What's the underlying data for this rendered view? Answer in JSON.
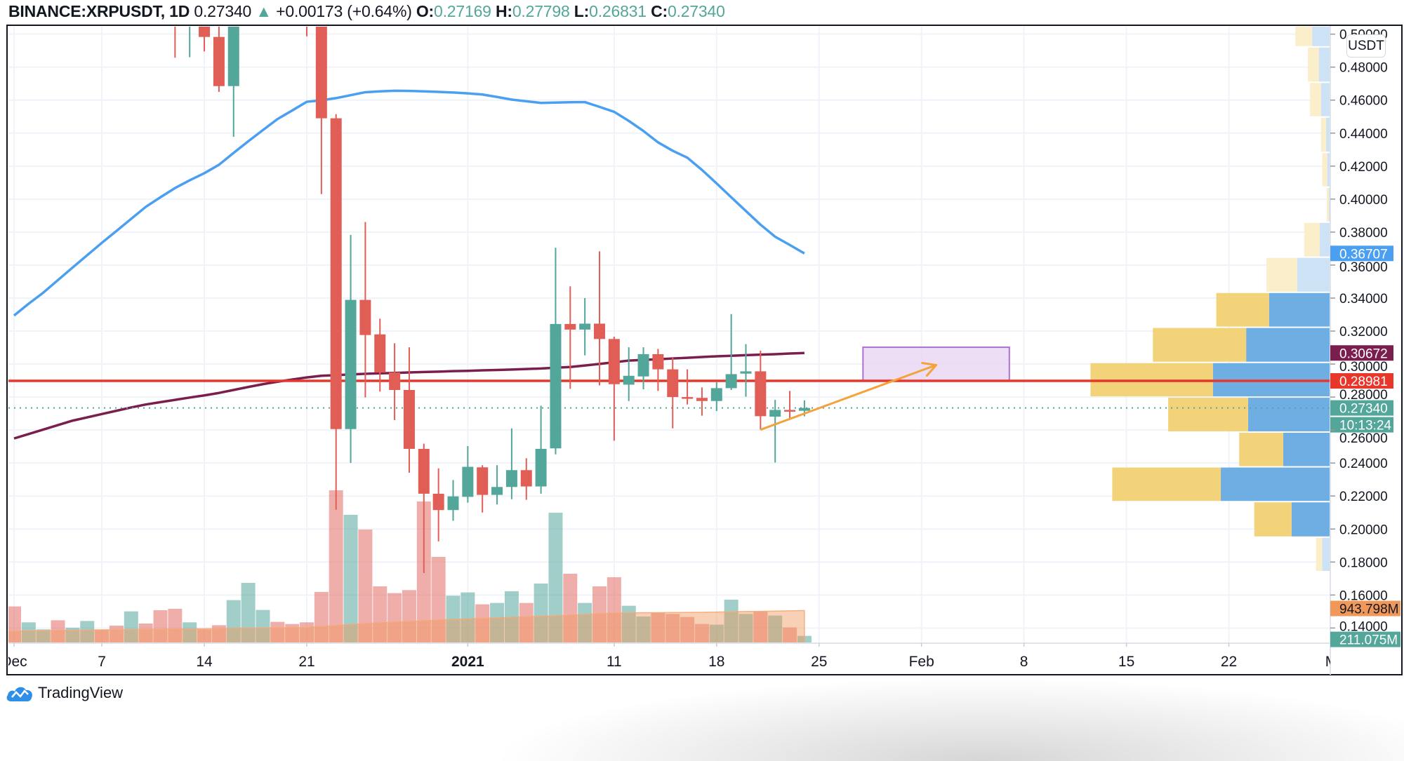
{
  "header": {
    "symbol": "BINANCE:XRPUSDT, 1D",
    "last": "0.27340",
    "change_arrow": "▲",
    "change": "+0.00173 (+0.64%)",
    "o_label": "O:",
    "o_value": "0.27169",
    "h_label": "H:",
    "h_value": "0.27798",
    "l_label": "L:",
    "l_value": "0.26831",
    "c_label": "C:",
    "c_value": "0.27340"
  },
  "currency_button": "USDT",
  "logo": {
    "text": "TradingView",
    "icon": "tradingview-cloud-icon"
  },
  "chart_data": {
    "type": "candlestick",
    "grid": true,
    "colors": {
      "up": "#53a69a",
      "down": "#e15e56",
      "ma_blue": "#4a9ff0",
      "ma_purple": "#7a1f4d",
      "level_line": "#e8372a",
      "arrow": "#f4a23a",
      "volume_ma": "#f0a070"
    },
    "price_range": [
      0.1308,
      0.5045
    ],
    "price_ticks": [
      {
        "value": 0.5,
        "label": "0.50000"
      },
      {
        "value": 0.48,
        "label": "0.48000"
      },
      {
        "value": 0.46,
        "label": "0.46000"
      },
      {
        "value": 0.44,
        "label": "0.44000"
      },
      {
        "value": 0.42,
        "label": "0.42000"
      },
      {
        "value": 0.4,
        "label": "0.40000"
      },
      {
        "value": 0.38,
        "label": "0.38000"
      },
      {
        "value": 0.36,
        "label": "0.36000"
      },
      {
        "value": 0.34,
        "label": "0.34000"
      },
      {
        "value": 0.32,
        "label": "0.32000"
      },
      {
        "value": 0.3,
        "label": "0.30000"
      },
      {
        "value": 0.28,
        "label": "0.28000"
      },
      {
        "value": 0.26,
        "label": "0.26000"
      },
      {
        "value": 0.24,
        "label": "0.24000"
      },
      {
        "value": 0.22,
        "label": "0.22000"
      },
      {
        "value": 0.2,
        "label": "0.20000"
      },
      {
        "value": 0.18,
        "label": "0.18000"
      },
      {
        "value": 0.16,
        "label": "0.16000"
      },
      {
        "value": 0.14,
        "label": "0.14000"
      }
    ],
    "time_axis": [
      {
        "date": "2020-12-01",
        "label": "Dec"
      },
      {
        "date": "2020-12-07",
        "label": "7"
      },
      {
        "date": "2020-12-14",
        "label": "14"
      },
      {
        "date": "2020-12-21",
        "label": "21"
      },
      {
        "date": "2021-01-01",
        "label": "2021"
      },
      {
        "date": "2021-01-11",
        "label": "11"
      },
      {
        "date": "2021-01-18",
        "label": "18"
      },
      {
        "date": "2021-01-25",
        "label": "25"
      },
      {
        "date": "2021-02-01",
        "label": "Feb"
      },
      {
        "date": "2021-02-08",
        "label": "8"
      },
      {
        "date": "2021-02-15",
        "label": "15"
      },
      {
        "date": "2021-02-22",
        "label": "22"
      },
      {
        "date": "2021-03-01",
        "label": "M"
      }
    ],
    "candle_columns": [
      "date",
      "open",
      "high",
      "low",
      "close",
      "volume_millions",
      "direction"
    ],
    "candles": [
      [
        "2020-12-01",
        null,
        null,
        null,
        null,
        1063,
        "down"
      ],
      [
        "2020-12-02",
        null,
        null,
        null,
        null,
        603,
        "up"
      ],
      [
        "2020-12-03",
        null,
        null,
        null,
        null,
        399,
        "up"
      ],
      [
        "2020-12-04",
        null,
        null,
        null,
        null,
        663,
        "down"
      ],
      [
        "2020-12-05",
        null,
        null,
        null,
        null,
        447,
        "up"
      ],
      [
        "2020-12-06",
        null,
        null,
        null,
        null,
        643,
        "up"
      ],
      [
        "2020-12-07",
        null,
        null,
        null,
        null,
        399,
        "down"
      ],
      [
        "2020-12-08",
        null,
        null,
        null,
        null,
        508,
        "down"
      ],
      [
        "2020-12-09",
        null,
        null,
        null,
        null,
        921,
        "up"
      ],
      [
        "2020-12-10",
        null,
        null,
        null,
        null,
        569,
        "down"
      ],
      [
        "2020-12-11",
        null,
        null,
        null,
        null,
        955,
        "down"
      ],
      [
        "2020-12-12",
        null,
        null,
        0.4857,
        null,
        995,
        "down"
      ],
      [
        "2020-12-13",
        null,
        null,
        0.486,
        null,
        603,
        "up"
      ],
      [
        "2020-12-14",
        null,
        null,
        0.4895,
        0.4983,
        399,
        "down"
      ],
      [
        "2020-12-15",
        0.4983,
        null,
        0.465,
        0.4685,
        521,
        "down"
      ],
      [
        "2020-12-16",
        0.4685,
        null,
        0.4378,
        null,
        1246,
        "up"
      ],
      [
        "2020-12-17",
        null,
        null,
        null,
        null,
        1746,
        "up"
      ],
      [
        "2020-12-18",
        null,
        null,
        null,
        null,
        961,
        "up"
      ],
      [
        "2020-12-19",
        null,
        null,
        null,
        null,
        616,
        "down"
      ],
      [
        "2020-12-20",
        null,
        null,
        null,
        null,
        555,
        "down"
      ],
      [
        "2020-12-21",
        null,
        null,
        0.4987,
        null,
        603,
        "down"
      ],
      [
        "2020-12-22",
        null,
        null,
        0.403,
        0.449,
        1483,
        "down"
      ],
      [
        "2020-12-23",
        0.449,
        0.4515,
        0.2117,
        0.2606,
        4425,
        "down"
      ],
      [
        "2020-12-24",
        0.2606,
        0.3783,
        0.2401,
        0.3389,
        3715,
        "up"
      ],
      [
        "2020-12-25",
        0.3389,
        0.3861,
        0.2798,
        0.3176,
        3289,
        "down"
      ],
      [
        "2020-12-26",
        0.318,
        0.3275,
        0.2833,
        0.2949,
        1644,
        "down"
      ],
      [
        "2020-12-27",
        0.2949,
        0.3126,
        0.266,
        0.2843,
        1449,
        "down"
      ],
      [
        "2020-12-28",
        0.2843,
        0.3102,
        0.2341,
        0.2486,
        1537,
        "down"
      ],
      [
        "2020-12-29",
        0.2486,
        0.2517,
        0.1733,
        0.2214,
        4100,
        "down"
      ],
      [
        "2020-12-30",
        0.2214,
        0.2368,
        0.1925,
        0.2115,
        2497,
        "down"
      ],
      [
        "2020-12-31",
        0.2115,
        0.2297,
        0.205,
        0.2198,
        1374,
        "up"
      ],
      [
        "2021-01-01",
        0.2195,
        0.2503,
        0.216,
        0.2377,
        1469,
        "up"
      ],
      [
        "2021-01-02",
        0.2374,
        0.2387,
        0.21,
        0.2207,
        1124,
        "down"
      ],
      [
        "2021-01-03",
        0.2207,
        0.2387,
        0.2149,
        0.2255,
        1164,
        "up"
      ],
      [
        "2021-01-04",
        0.2255,
        0.261,
        0.2181,
        0.2357,
        1503,
        "up"
      ],
      [
        "2021-01-05",
        0.2357,
        0.2429,
        0.2177,
        0.2258,
        1164,
        "down"
      ],
      [
        "2021-01-06",
        0.2258,
        0.2748,
        0.2214,
        0.2486,
        1726,
        "up"
      ],
      [
        "2021-01-07",
        0.2489,
        0.3705,
        0.2453,
        0.3243,
        3776,
        "up"
      ],
      [
        "2021-01-08",
        0.3243,
        0.3471,
        0.285,
        0.3209,
        2010,
        "down"
      ],
      [
        "2021-01-09",
        0.3209,
        0.34,
        0.3053,
        0.3245,
        1164,
        "up"
      ],
      [
        "2021-01-10",
        0.3245,
        0.3683,
        0.2871,
        0.3152,
        1644,
        "down"
      ],
      [
        "2021-01-11",
        0.3152,
        0.3166,
        0.2535,
        0.2878,
        1908,
        "down"
      ],
      [
        "2021-01-12",
        0.2875,
        0.3102,
        0.2776,
        0.2929,
        1083,
        "up"
      ],
      [
        "2021-01-13",
        0.2925,
        0.3102,
        0.2847,
        0.306,
        772,
        "up"
      ],
      [
        "2021-01-14",
        0.306,
        0.3092,
        0.2837,
        0.2968,
        887,
        "down"
      ],
      [
        "2021-01-15",
        0.2968,
        0.3038,
        0.261,
        0.28,
        846,
        "down"
      ],
      [
        "2021-01-16",
        0.28,
        0.2968,
        0.2755,
        0.2795,
        758,
        "down"
      ],
      [
        "2021-01-17",
        0.2795,
        0.2858,
        0.2687,
        0.2776,
        555,
        "down"
      ],
      [
        "2021-01-18",
        0.2776,
        0.289,
        0.2715,
        0.2854,
        535,
        "up"
      ],
      [
        "2021-01-19",
        0.2854,
        0.3303,
        0.2843,
        0.2939,
        1259,
        "up"
      ],
      [
        "2021-01-20",
        0.2942,
        0.3121,
        0.2802,
        0.2956,
        846,
        "up"
      ],
      [
        "2021-01-21",
        0.2956,
        0.3081,
        0.2602,
        0.2684,
        914,
        "down"
      ],
      [
        "2021-01-22",
        0.2681,
        0.2783,
        0.2403,
        0.2722,
        799,
        "up"
      ],
      [
        "2021-01-23",
        0.2722,
        0.2837,
        0.2667,
        0.2718,
        454,
        "down"
      ],
      [
        "2021-01-24",
        0.27169,
        0.27798,
        0.26831,
        0.2734,
        211.075,
        "up"
      ]
    ],
    "ma_blue": [
      0.3294,
      0.3366,
      0.3433,
      0.3509,
      0.3585,
      0.366,
      0.3735,
      0.3807,
      0.388,
      0.3953,
      0.4011,
      0.4067,
      0.4114,
      0.4157,
      0.4208,
      0.428,
      0.435,
      0.4418,
      0.4485,
      0.4537,
      0.459,
      0.4599,
      0.4612,
      0.463,
      0.4648,
      0.4653,
      0.4657,
      0.4656,
      0.4653,
      0.465,
      0.4646,
      0.4641,
      0.4634,
      0.4619,
      0.4603,
      0.4593,
      0.4583,
      0.4585,
      0.4587,
      0.4588,
      0.4559,
      0.4529,
      0.4474,
      0.4413,
      0.4344,
      0.4293,
      0.4251,
      0.4177,
      0.4095,
      0.4011,
      0.3928,
      0.3845,
      0.3772,
      0.3722,
      0.36707
    ],
    "ma_purple": [
      0.2549,
      0.2576,
      0.2603,
      0.263,
      0.2657,
      0.2677,
      0.2697,
      0.2717,
      0.2737,
      0.2755,
      0.2769,
      0.2783,
      0.2797,
      0.281,
      0.2825,
      0.2843,
      0.2861,
      0.2878,
      0.2893,
      0.2906,
      0.2919,
      0.2929,
      0.2933,
      0.2937,
      0.2941,
      0.2944,
      0.2946,
      0.2949,
      0.2952,
      0.2954,
      0.2957,
      0.2959,
      0.2962,
      0.2964,
      0.2967,
      0.297,
      0.2973,
      0.2978,
      0.2982,
      0.2991,
      0.3001,
      0.3011,
      0.3021,
      0.3025,
      0.3029,
      0.3034,
      0.3038,
      0.3043,
      0.3047,
      0.305,
      0.3054,
      0.3057,
      0.306,
      0.3064,
      0.30672
    ],
    "volume_ma": [
      352,
      357,
      362,
      367,
      372,
      378,
      383,
      388,
      393,
      398,
      403,
      408,
      413,
      418,
      423,
      428,
      434,
      439,
      444,
      449,
      454,
      482,
      510,
      540,
      569,
      589,
      609,
      629,
      649,
      669,
      687,
      704,
      719,
      734,
      749,
      763,
      778,
      792,
      812,
      832,
      852,
      873,
      877,
      880,
      884,
      887,
      891,
      894,
      901,
      908,
      915,
      922,
      929,
      936,
      943.798
    ],
    "level_line": {
      "price": 0.28981
    },
    "last_price_line": {
      "price": 0.2734
    },
    "rectangle": {
      "from": "2021-01-28",
      "to": "2021-02-07",
      "top": 0.3102,
      "bottom": 0.2898,
      "fill": "#e8d6f2",
      "stroke": "#b070d0"
    },
    "arrow": {
      "from_date": "2021-01-21",
      "from_price": 0.2602,
      "to_date": "2021-02-02",
      "to_price": 0.2994
    },
    "volume_profile_columns": [
      "price_low",
      "price_high",
      "down_share",
      "up_share",
      "in_value_area"
    ],
    "volume_profile": [
      [
        0.1742,
        0.1951,
        0.026,
        0.031,
        false
      ],
      [
        0.1951,
        0.2166,
        0.156,
        0.159,
        true
      ],
      [
        0.2166,
        0.2377,
        0.454,
        0.455,
        true
      ],
      [
        0.2377,
        0.2588,
        0.184,
        0.194,
        true
      ],
      [
        0.2588,
        0.28,
        0.334,
        0.341,
        true
      ],
      [
        0.28,
        0.301,
        0.512,
        0.488,
        true
      ],
      [
        0.301,
        0.3223,
        0.39,
        0.349,
        true
      ],
      [
        0.3223,
        0.3435,
        0.221,
        0.253,
        true
      ],
      [
        0.3435,
        0.3648,
        0.128,
        0.136,
        false
      ],
      [
        0.3648,
        0.386,
        0.065,
        0.041,
        false
      ],
      [
        0.386,
        0.4073,
        0.009,
        0.003,
        false
      ],
      [
        0.4073,
        0.4283,
        0.021,
        0.01,
        false
      ],
      [
        0.4283,
        0.4498,
        0.021,
        0.015,
        false
      ],
      [
        0.4498,
        0.4708,
        0.046,
        0.036,
        false
      ],
      [
        0.4708,
        0.4923,
        0.046,
        0.045,
        false
      ],
      [
        0.4923,
        0.5137,
        0.07,
        0.073,
        false
      ]
    ],
    "price_badges": [
      {
        "label": "0.36707",
        "price": 0.36707,
        "color": "#4a9ff0",
        "text_color": "#ffffff",
        "name": "blue-ma-value"
      },
      {
        "label": "0.30672",
        "price": 0.30672,
        "color": "#7a1f4d",
        "text_color": "#ffffff",
        "name": "purple-ma-value"
      },
      {
        "label": "0.28981",
        "price": 0.28981,
        "color": "#e8372a",
        "text_color": "#ffffff",
        "name": "level-line-value"
      },
      {
        "label": "0.27340",
        "price": 0.2734,
        "color": "#53a69a",
        "text_color": "#ffffff",
        "name": "last-price"
      }
    ],
    "countdown": "10:13:24",
    "volume_badges": [
      {
        "label": "943.798M",
        "volume": 943.798,
        "color": "#f0985a",
        "text_color": "#131722",
        "name": "volume-ma-value"
      },
      {
        "label": "211.075M",
        "volume": 211.075,
        "color": "#53a69a",
        "text_color": "#ffffff",
        "name": "last-volume"
      }
    ]
  }
}
